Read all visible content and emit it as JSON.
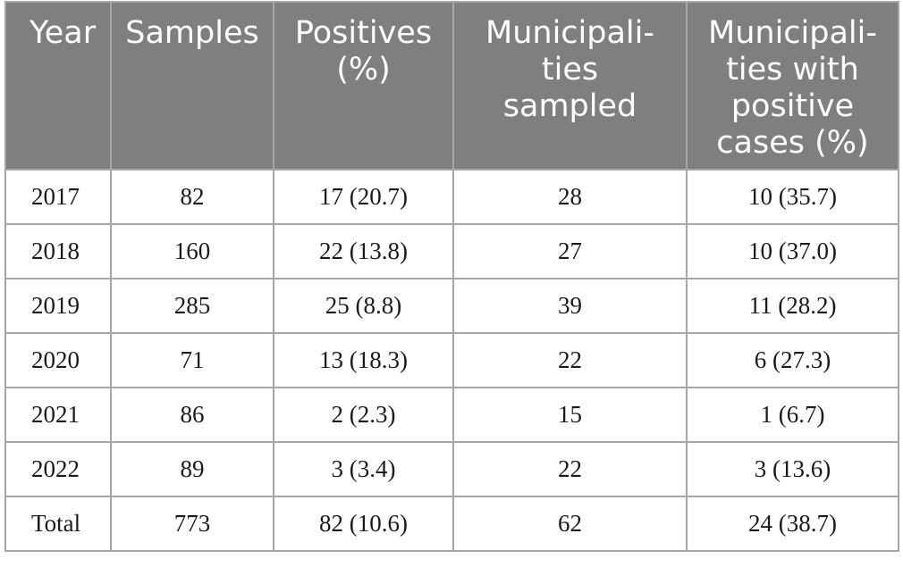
{
  "table": {
    "headers": [
      [
        "Year"
      ],
      [
        "Samples"
      ],
      [
        "Positives",
        "(%)"
      ],
      [
        "Municipali-",
        "ties",
        "sampled"
      ],
      [
        "Municipali-",
        "ties with",
        "positive",
        "cases (%)"
      ]
    ],
    "rows": [
      [
        "2017",
        "82",
        "17 (20.7)",
        "28",
        "10 (35.7)"
      ],
      [
        "2018",
        "160",
        "22 (13.8)",
        "27",
        "10 (37.0)"
      ],
      [
        "2019",
        "285",
        "25 (8.8)",
        "39",
        "11 (28.2)"
      ],
      [
        "2020",
        "71",
        "13 (18.3)",
        "22",
        "6 (27.3)"
      ],
      [
        "2021",
        "86",
        "2 (2.3)",
        "15",
        "1 (6.7)"
      ],
      [
        "2022",
        "89",
        "3 (3.4)",
        "22",
        "3 (13.6)"
      ],
      [
        "Total",
        "773",
        "82 (10.6)",
        "62",
        "24 (38.7)"
      ]
    ]
  }
}
